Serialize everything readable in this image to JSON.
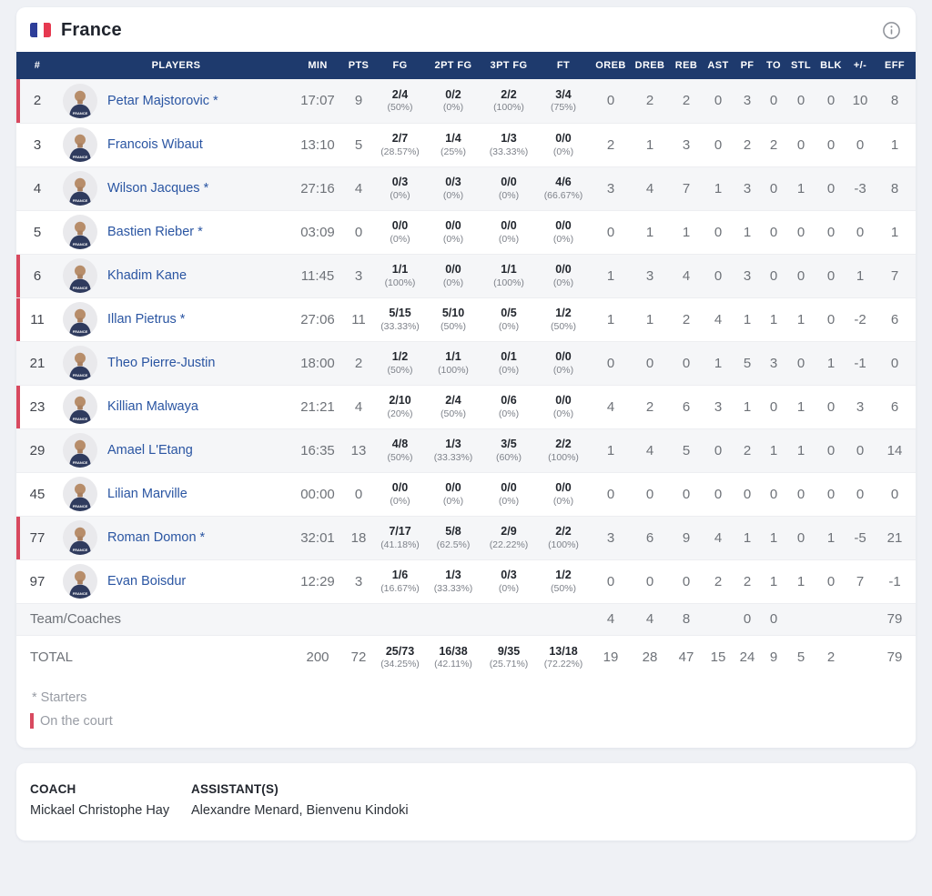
{
  "team": {
    "name": "France",
    "flag": {
      "blue": "#2d3e99",
      "white": "#ffffff",
      "red": "#e63950"
    }
  },
  "colors": {
    "header_navy": "#1e3a6d",
    "on_court_red": "#d8495f",
    "player_name_blue": "#2a55a2",
    "page_bg": "#eff1f5"
  },
  "icons": {
    "info": "info-circle-icon",
    "flag": "france-flag-icon",
    "avatar": "player-avatar-icon"
  },
  "table": {
    "headers": [
      "#",
      "PLAYERS",
      "MIN",
      "PTS",
      "FG",
      "2PT FG",
      "3PT FG",
      "FT",
      "OREB",
      "DREB",
      "REB",
      "AST",
      "PF",
      "TO",
      "STL",
      "BLK",
      "+/-",
      "EFF"
    ],
    "rows": [
      {
        "num": "2",
        "name": "Petar Majstorovic *",
        "on_court": true,
        "min": "17:07",
        "pts": "9",
        "fg": {
          "v": "2/4",
          "p": "(50%)"
        },
        "fg2": {
          "v": "0/2",
          "p": "(0%)"
        },
        "fg3": {
          "v": "2/2",
          "p": "(100%)"
        },
        "ft": {
          "v": "3/4",
          "p": "(75%)"
        },
        "oreb": "0",
        "dreb": "2",
        "reb": "2",
        "ast": "0",
        "pf": "3",
        "to": "0",
        "stl": "0",
        "blk": "0",
        "pm": "10",
        "eff": "8"
      },
      {
        "num": "3",
        "name": "Francois Wibaut",
        "on_court": false,
        "min": "13:10",
        "pts": "5",
        "fg": {
          "v": "2/7",
          "p": "(28.57%)"
        },
        "fg2": {
          "v": "1/4",
          "p": "(25%)"
        },
        "fg3": {
          "v": "1/3",
          "p": "(33.33%)"
        },
        "ft": {
          "v": "0/0",
          "p": "(0%)"
        },
        "oreb": "2",
        "dreb": "1",
        "reb": "3",
        "ast": "0",
        "pf": "2",
        "to": "2",
        "stl": "0",
        "blk": "0",
        "pm": "0",
        "eff": "1"
      },
      {
        "num": "4",
        "name": "Wilson Jacques *",
        "on_court": false,
        "min": "27:16",
        "pts": "4",
        "fg": {
          "v": "0/3",
          "p": "(0%)"
        },
        "fg2": {
          "v": "0/3",
          "p": "(0%)"
        },
        "fg3": {
          "v": "0/0",
          "p": "(0%)"
        },
        "ft": {
          "v": "4/6",
          "p": "(66.67%)"
        },
        "oreb": "3",
        "dreb": "4",
        "reb": "7",
        "ast": "1",
        "pf": "3",
        "to": "0",
        "stl": "1",
        "blk": "0",
        "pm": "-3",
        "eff": "8"
      },
      {
        "num": "5",
        "name": "Bastien Rieber *",
        "on_court": false,
        "min": "03:09",
        "pts": "0",
        "fg": {
          "v": "0/0",
          "p": "(0%)"
        },
        "fg2": {
          "v": "0/0",
          "p": "(0%)"
        },
        "fg3": {
          "v": "0/0",
          "p": "(0%)"
        },
        "ft": {
          "v": "0/0",
          "p": "(0%)"
        },
        "oreb": "0",
        "dreb": "1",
        "reb": "1",
        "ast": "0",
        "pf": "1",
        "to": "0",
        "stl": "0",
        "blk": "0",
        "pm": "0",
        "eff": "1"
      },
      {
        "num": "6",
        "name": "Khadim Kane",
        "on_court": true,
        "min": "11:45",
        "pts": "3",
        "fg": {
          "v": "1/1",
          "p": "(100%)"
        },
        "fg2": {
          "v": "0/0",
          "p": "(0%)"
        },
        "fg3": {
          "v": "1/1",
          "p": "(100%)"
        },
        "ft": {
          "v": "0/0",
          "p": "(0%)"
        },
        "oreb": "1",
        "dreb": "3",
        "reb": "4",
        "ast": "0",
        "pf": "3",
        "to": "0",
        "stl": "0",
        "blk": "0",
        "pm": "1",
        "eff": "7"
      },
      {
        "num": "11",
        "name": "Illan Pietrus *",
        "on_court": true,
        "min": "27:06",
        "pts": "11",
        "fg": {
          "v": "5/15",
          "p": "(33.33%)"
        },
        "fg2": {
          "v": "5/10",
          "p": "(50%)"
        },
        "fg3": {
          "v": "0/5",
          "p": "(0%)"
        },
        "ft": {
          "v": "1/2",
          "p": "(50%)"
        },
        "oreb": "1",
        "dreb": "1",
        "reb": "2",
        "ast": "4",
        "pf": "1",
        "to": "1",
        "stl": "1",
        "blk": "0",
        "pm": "-2",
        "eff": "6"
      },
      {
        "num": "21",
        "name": "Theo Pierre-Justin",
        "on_court": false,
        "min": "18:00",
        "pts": "2",
        "fg": {
          "v": "1/2",
          "p": "(50%)"
        },
        "fg2": {
          "v": "1/1",
          "p": "(100%)"
        },
        "fg3": {
          "v": "0/1",
          "p": "(0%)"
        },
        "ft": {
          "v": "0/0",
          "p": "(0%)"
        },
        "oreb": "0",
        "dreb": "0",
        "reb": "0",
        "ast": "1",
        "pf": "5",
        "to": "3",
        "stl": "0",
        "blk": "1",
        "pm": "-1",
        "eff": "0"
      },
      {
        "num": "23",
        "name": "Killian Malwaya",
        "on_court": true,
        "min": "21:21",
        "pts": "4",
        "fg": {
          "v": "2/10",
          "p": "(20%)"
        },
        "fg2": {
          "v": "2/4",
          "p": "(50%)"
        },
        "fg3": {
          "v": "0/6",
          "p": "(0%)"
        },
        "ft": {
          "v": "0/0",
          "p": "(0%)"
        },
        "oreb": "4",
        "dreb": "2",
        "reb": "6",
        "ast": "3",
        "pf": "1",
        "to": "0",
        "stl": "1",
        "blk": "0",
        "pm": "3",
        "eff": "6"
      },
      {
        "num": "29",
        "name": "Amael L'Etang",
        "on_court": false,
        "min": "16:35",
        "pts": "13",
        "fg": {
          "v": "4/8",
          "p": "(50%)"
        },
        "fg2": {
          "v": "1/3",
          "p": "(33.33%)"
        },
        "fg3": {
          "v": "3/5",
          "p": "(60%)"
        },
        "ft": {
          "v": "2/2",
          "p": "(100%)"
        },
        "oreb": "1",
        "dreb": "4",
        "reb": "5",
        "ast": "0",
        "pf": "2",
        "to": "1",
        "stl": "1",
        "blk": "0",
        "pm": "0",
        "eff": "14"
      },
      {
        "num": "45",
        "name": "Lilian Marville",
        "on_court": false,
        "min": "00:00",
        "pts": "0",
        "fg": {
          "v": "0/0",
          "p": "(0%)"
        },
        "fg2": {
          "v": "0/0",
          "p": "(0%)"
        },
        "fg3": {
          "v": "0/0",
          "p": "(0%)"
        },
        "ft": {
          "v": "0/0",
          "p": "(0%)"
        },
        "oreb": "0",
        "dreb": "0",
        "reb": "0",
        "ast": "0",
        "pf": "0",
        "to": "0",
        "stl": "0",
        "blk": "0",
        "pm": "0",
        "eff": "0"
      },
      {
        "num": "77",
        "name": "Roman Domon *",
        "on_court": true,
        "min": "32:01",
        "pts": "18",
        "fg": {
          "v": "7/17",
          "p": "(41.18%)"
        },
        "fg2": {
          "v": "5/8",
          "p": "(62.5%)"
        },
        "fg3": {
          "v": "2/9",
          "p": "(22.22%)"
        },
        "ft": {
          "v": "2/2",
          "p": "(100%)"
        },
        "oreb": "3",
        "dreb": "6",
        "reb": "9",
        "ast": "4",
        "pf": "1",
        "to": "1",
        "stl": "0",
        "blk": "1",
        "pm": "-5",
        "eff": "21"
      },
      {
        "num": "97",
        "name": "Evan Boisdur",
        "on_court": false,
        "min": "12:29",
        "pts": "3",
        "fg": {
          "v": "1/6",
          "p": "(16.67%)"
        },
        "fg2": {
          "v": "1/3",
          "p": "(33.33%)"
        },
        "fg3": {
          "v": "0/3",
          "p": "(0%)"
        },
        "ft": {
          "v": "1/2",
          "p": "(50%)"
        },
        "oreb": "0",
        "dreb": "0",
        "reb": "0",
        "ast": "2",
        "pf": "2",
        "to": "1",
        "stl": "1",
        "blk": "0",
        "pm": "7",
        "eff": "-1"
      }
    ],
    "team_row": {
      "label": "Team/Coaches",
      "min": "",
      "pts": "",
      "oreb": "4",
      "dreb": "4",
      "reb": "8",
      "ast": "",
      "pf": "0",
      "to": "0",
      "stl": "",
      "blk": "",
      "pm": "",
      "eff": "79"
    },
    "total_row": {
      "label": "TOTAL",
      "min": "200",
      "pts": "72",
      "fg": {
        "v": "25/73",
        "p": "(34.25%)"
      },
      "fg2": {
        "v": "16/38",
        "p": "(42.11%)"
      },
      "fg3": {
        "v": "9/35",
        "p": "(25.71%)"
      },
      "ft": {
        "v": "13/18",
        "p": "(72.22%)"
      },
      "oreb": "19",
      "dreb": "28",
      "reb": "47",
      "ast": "15",
      "pf": "24",
      "to": "9",
      "stl": "5",
      "blk": "2",
      "pm": "",
      "eff": "79"
    }
  },
  "legend": {
    "starters": "* Starters",
    "on_court": "On the court"
  },
  "staff": {
    "coach_label": "COACH",
    "coach_name": "Mickael Christophe Hay",
    "assistants_label": "ASSISTANT(S)",
    "assistants_names": "Alexandre Menard, Bienvenu Kindoki"
  }
}
